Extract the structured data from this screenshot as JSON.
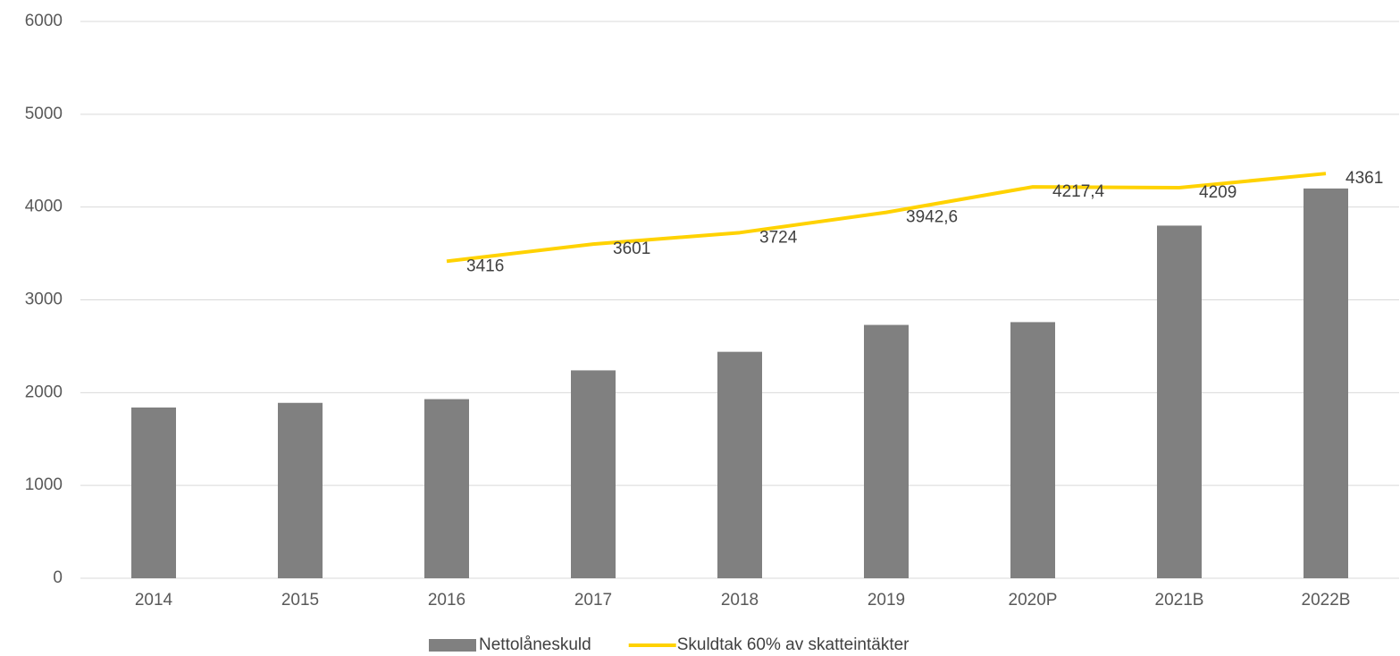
{
  "chart_data": {
    "type": "bar",
    "categories": [
      "2014",
      "2015",
      "2016",
      "2017",
      "2018",
      "2019",
      "2020P",
      "2021B",
      "2022B"
    ],
    "series": [
      {
        "name": "Nettolåneskuld",
        "type": "bar",
        "color": "#808080",
        "values": [
          1840,
          1890,
          1930,
          2240,
          2440,
          2730,
          2760,
          3800,
          4200
        ]
      },
      {
        "name": "Skuldtak 60% av skatteintäkter",
        "type": "line",
        "color": "#ffd200",
        "values": [
          null,
          null,
          3416,
          3601,
          3724,
          3942.6,
          4217.4,
          4209,
          4361
        ],
        "value_labels": [
          null,
          null,
          "3416",
          "3601",
          "3724",
          "3942,6",
          "4217,4",
          "4209",
          "4361"
        ]
      }
    ],
    "ylim": [
      0,
      6000
    ],
    "yticks": [
      0,
      1000,
      2000,
      3000,
      4000,
      5000,
      6000
    ],
    "grid": true,
    "legend": "bottom"
  }
}
